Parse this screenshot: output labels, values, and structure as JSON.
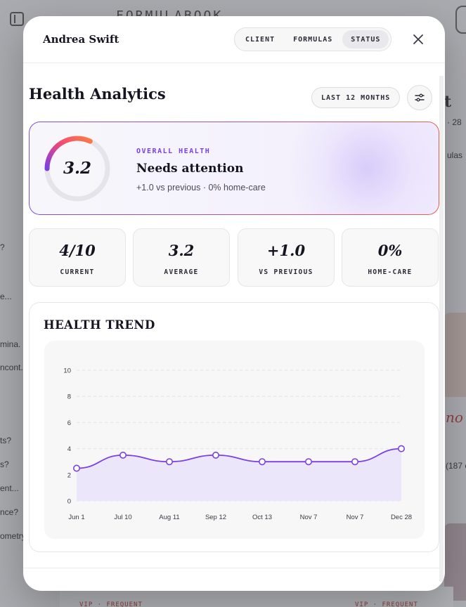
{
  "background": {
    "brand": "FORMULABOOK",
    "left_fragments": [
      "?",
      "e...",
      "mina.",
      "ncont...",
      "ts?",
      "s?",
      "ent...",
      "nce?",
      "ometry"
    ],
    "right_fragments": [
      "t",
      "· 28",
      "ulas",
      "no",
      "(187 c"
    ],
    "bottom_labels": [
      "VIP · FREQUENT",
      "VIP · FREQUENT"
    ]
  },
  "modal": {
    "client_name": "Andrea Swift",
    "tabs": [
      {
        "label": "CLIENT",
        "active": false
      },
      {
        "label": "FORMULAS",
        "active": false
      },
      {
        "label": "STATUS",
        "active": true
      }
    ],
    "close_icon": "close-icon"
  },
  "analytics": {
    "title": "Health Analytics",
    "range_label": "LAST 12 MONTHS",
    "filter_icon": "sliders-icon",
    "overall": {
      "label": "OVERALL HEALTH",
      "score": "3.2",
      "score_fraction": 0.32,
      "status": "Needs attention",
      "subtext": "+1.0 vs previous · 0% home-care",
      "gauge_colors": [
        "#7b3fe4",
        "#f2467a",
        "#f97d44"
      ]
    },
    "stats": [
      {
        "value": "4/10",
        "label": "CURRENT"
      },
      {
        "value": "3.2",
        "label": "AVERAGE"
      },
      {
        "value": "+1.0",
        "label": "VS PREVIOUS"
      },
      {
        "value": "0%",
        "label": "HOME-CARE"
      }
    ]
  },
  "trend": {
    "title": "HEALTH TREND"
  },
  "chart_data": {
    "type": "area",
    "title": "HEALTH TREND",
    "categories": [
      "Jun 1",
      "Jul 10",
      "Aug 11",
      "Sep 12",
      "Oct 13",
      "Nov 7",
      "Nov 7",
      "Dec 28"
    ],
    "values": [
      2.5,
      3.5,
      3.0,
      3.5,
      3.0,
      3.0,
      3.0,
      4.0
    ],
    "ylim": [
      0,
      10
    ],
    "yticks": [
      0,
      2,
      4,
      6,
      8,
      10
    ],
    "grid": true,
    "line_color": "#7b3fe4",
    "fill_color": "#ece6fb",
    "xlabel": "",
    "ylabel": ""
  }
}
